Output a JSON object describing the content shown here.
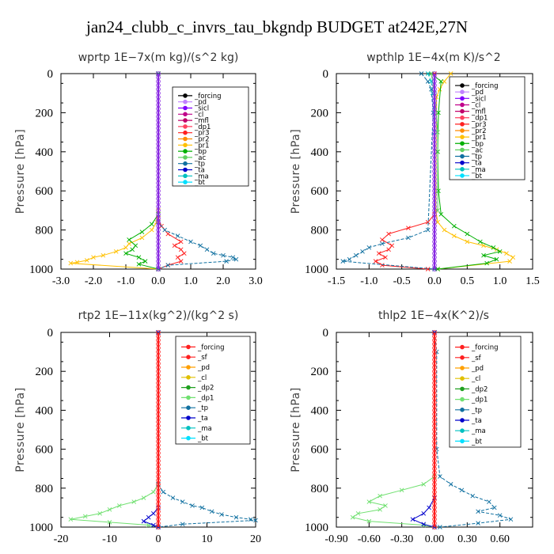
{
  "figure": {
    "title": "jan24_clubb_c_invrs_tau_bkgndp  BUDGET at242E,27N"
  },
  "chart_data": [
    {
      "type": "line",
      "title": "wprtp   1E−7x(m kg)/(s^2 kg)",
      "ylabel": "Pressure  [hPa]",
      "xlim": [
        -3.0,
        3.0
      ],
      "ylim": [
        1000,
        0
      ],
      "xticks": [
        "-3.0",
        "-2.0",
        "-1.0",
        "0.0",
        "1.0",
        "2.0",
        "3.0"
      ],
      "yticks": [
        "0",
        "200",
        "400",
        "600",
        "800",
        "1000"
      ],
      "legend": [
        "_forcing",
        "_pd",
        "_sicl",
        "_cl",
        "_mfl",
        "_dp1",
        "_pr3",
        "_pr2",
        "_pr1",
        "_bp",
        "_ac",
        "_tp",
        "_ta",
        "_ma",
        "_bt"
      ],
      "legend_colors": [
        "#000000",
        "#c080ff",
        "#8000ff",
        "#c0008a",
        "#c0006a",
        "#ff4060",
        "#ff2020",
        "#ff8c00",
        "#ffc000",
        "#00b000",
        "#60d060",
        "#1070a0",
        "#0000cc",
        "#00c0c0",
        "#00e0ff"
      ],
      "series": [
        {
          "name": "_pr1",
          "color": "#ffc000",
          "x": [
            0,
            0,
            -0.05,
            -0.2,
            -0.5,
            -0.9,
            -1.0,
            -1.3,
            -1.7,
            -2.0,
            -2.2,
            -2.5,
            -2.7,
            0.0
          ],
          "y": [
            0,
            700,
            760,
            800,
            840,
            870,
            890,
            910,
            930,
            940,
            955,
            965,
            970,
            1000
          ]
        },
        {
          "name": "_bp",
          "color": "#00b000",
          "x": [
            0,
            0,
            -0.2,
            -0.5,
            -0.9,
            -0.7,
            -0.8,
            -1.0,
            -0.6,
            -0.4,
            -0.6,
            0.0
          ],
          "y": [
            0,
            720,
            770,
            810,
            850,
            880,
            900,
            920,
            940,
            960,
            975,
            1000
          ]
        },
        {
          "name": "_dp1",
          "color": "#ff2020",
          "x": [
            0,
            0,
            0.1,
            0.3,
            0.7,
            0.5,
            0.7,
            0.8,
            0.6,
            0.7,
            0.3,
            0.0
          ],
          "y": [
            0,
            740,
            780,
            820,
            860,
            880,
            900,
            920,
            940,
            960,
            980,
            1000
          ]
        },
        {
          "name": "_tp",
          "color": "#1070a0",
          "x": [
            0,
            0,
            0.2,
            0.6,
            1.0,
            1.3,
            1.5,
            1.7,
            2.0,
            2.3,
            2.4,
            2.1,
            0.3,
            0.0
          ],
          "y": [
            0,
            760,
            800,
            830,
            860,
            880,
            900,
            920,
            930,
            940,
            950,
            960,
            980,
            1000
          ]
        },
        {
          "name": "_bt",
          "color": "#8a2be2",
          "x": [
            0,
            0
          ],
          "y": [
            0,
            1000
          ]
        }
      ]
    },
    {
      "type": "line",
      "title": "wpthlp   1E−4x(m K)/s^2",
      "ylabel": "Pressure  [hPa]",
      "xlim": [
        -1.5,
        1.5
      ],
      "ylim": [
        1000,
        0
      ],
      "xticks": [
        "-1.5",
        "-1.0",
        "-0.5",
        "0.0",
        "0.5",
        "1.0",
        "1.5"
      ],
      "yticks": [
        "0",
        "200",
        "400",
        "600",
        "800",
        "1000"
      ],
      "legend": [
        "_forcing",
        "_pd",
        "_sicl",
        "_cl",
        "_mfl",
        "_dp1",
        "_pr3",
        "_pr2",
        "_pr1",
        "_bp",
        "_ac",
        "_tp",
        "_ta",
        "_ma",
        "_bt"
      ],
      "legend_colors": [
        "#000000",
        "#c080ff",
        "#8000ff",
        "#c0008a",
        "#c0006a",
        "#ff4060",
        "#ff2020",
        "#ff8c00",
        "#ffc000",
        "#00b000",
        "#60d060",
        "#1070a0",
        "#0000cc",
        "#00c0c0",
        "#00e0ff"
      ],
      "series": [
        {
          "name": "_pr1",
          "color": "#ffc000",
          "x": [
            0.25,
            0.15,
            0.08,
            0.03,
            0.02,
            0.05,
            0.15,
            0.3,
            0.5,
            0.75,
            0.95,
            1.1,
            1.2,
            1.15,
            0.05
          ],
          "y": [
            0,
            40,
            80,
            120,
            700,
            760,
            800,
            830,
            860,
            880,
            900,
            920,
            940,
            960,
            1000
          ]
        },
        {
          "name": "_bp",
          "color": "#00b000",
          "x": [
            -0.05,
            0.1,
            0.06,
            0.05,
            0.06,
            0.1,
            0.3,
            0.5,
            0.7,
            0.9,
            1.0,
            0.75,
            0.95,
            0.8,
            0.05
          ],
          "y": [
            0,
            40,
            200,
            400,
            600,
            720,
            780,
            820,
            860,
            890,
            910,
            930,
            950,
            970,
            1000
          ]
        },
        {
          "name": "_dp1",
          "color": "#ff2020",
          "x": [
            0,
            0,
            -0.1,
            -0.4,
            -0.7,
            -0.8,
            -0.65,
            -0.7,
            -0.85,
            -0.75,
            -0.9,
            -0.8,
            -0.1
          ],
          "y": [
            0,
            720,
            760,
            790,
            820,
            850,
            880,
            900,
            920,
            940,
            960,
            980,
            1000
          ]
        },
        {
          "name": "_tp",
          "color": "#1070a0",
          "x": [
            -0.2,
            -0.1,
            -0.05,
            -0.02,
            -0.1,
            -0.4,
            -0.8,
            -1.0,
            -1.1,
            -1.2,
            -1.3,
            -1.4,
            0.0
          ],
          "y": [
            0,
            40,
            80,
            200,
            800,
            840,
            870,
            890,
            910,
            930,
            950,
            960,
            1000
          ]
        },
        {
          "name": "_ac",
          "color": "#60d060",
          "x": [
            -0.05,
            0.0,
            0.05,
            0.05
          ],
          "y": [
            0,
            100,
            300,
            700
          ]
        },
        {
          "name": "_ma",
          "color": "#00c0c0",
          "x": [
            -0.1,
            -0.05,
            -0.03,
            0.0
          ],
          "y": [
            0,
            40,
            100,
            300
          ]
        },
        {
          "name": "_bt",
          "color": "#8a2be2",
          "x": [
            0,
            0
          ],
          "y": [
            0,
            1000
          ]
        }
      ]
    },
    {
      "type": "line",
      "title": "rtp2   1E−11x(kg^2)/(kg^2 s)",
      "ylabel": "Pressure  [hPa]",
      "xlim": [
        -20,
        20
      ],
      "ylim": [
        1000,
        0
      ],
      "xticks": [
        "-20",
        "-10",
        "0",
        "10",
        "20"
      ],
      "yticks": [
        "0",
        "200",
        "400",
        "600",
        "800",
        "1000"
      ],
      "legend": [
        "_forcing",
        "_sf",
        "_pd",
        "_cl",
        "_dp2",
        "_dp1",
        "_tp",
        "_ta",
        "_ma",
        "_bt"
      ],
      "legend_colors": [
        "#ff2020",
        "#ff2020",
        "#ffa000",
        "#e0c000",
        "#20a020",
        "#70e070",
        "#1070a0",
        "#0000cc",
        "#00c0c0",
        "#00e0ff"
      ],
      "series": [
        {
          "name": "_dp1",
          "color": "#70e070",
          "x": [
            0,
            0,
            -1,
            -3,
            -5,
            -8,
            -10,
            -12,
            -15,
            -18,
            -10,
            -2,
            0
          ],
          "y": [
            0,
            780,
            820,
            850,
            870,
            890,
            910,
            930,
            945,
            960,
            975,
            990,
            1000
          ]
        },
        {
          "name": "_tp",
          "color": "#1070a0",
          "x": [
            0,
            0,
            1,
            3,
            5,
            7,
            9,
            11,
            13,
            16,
            19,
            20,
            5,
            0
          ],
          "y": [
            0,
            780,
            820,
            850,
            870,
            890,
            900,
            920,
            935,
            950,
            960,
            965,
            985,
            1000
          ]
        },
        {
          "name": "_ta",
          "color": "#0000cc",
          "x": [
            0,
            0,
            -1,
            -2,
            -3,
            -1,
            0
          ],
          "y": [
            0,
            900,
            930,
            950,
            970,
            990,
            1000
          ]
        },
        {
          "name": "_bt",
          "color": "#ff2020",
          "x": [
            0,
            0
          ],
          "y": [
            0,
            1000
          ]
        }
      ]
    },
    {
      "type": "line",
      "title": "thlp2   1E−4x(K^2)/s",
      "ylabel": "Pressure  [hPa]",
      "xlim": [
        -0.9,
        0.9
      ],
      "ylim": [
        1000,
        0
      ],
      "xticks": [
        "-0.90",
        "-0.60",
        "-0.30",
        "0.00",
        "0.30",
        "0.60"
      ],
      "yticks": [
        "0",
        "200",
        "400",
        "600",
        "800",
        "1000"
      ],
      "legend": [
        "_forcing",
        "_sf",
        "_pd",
        "_cl",
        "_dp2",
        "_dp1",
        "_tp",
        "_ta",
        "_ma",
        "_bt"
      ],
      "legend_colors": [
        "#ff2020",
        "#ff2020",
        "#ffa000",
        "#e0c000",
        "#20a020",
        "#70e070",
        "#1070a0",
        "#0000cc",
        "#00c0c0",
        "#00e0ff"
      ],
      "series": [
        {
          "name": "_dp1",
          "color": "#70e070",
          "x": [
            0,
            0,
            -0.1,
            -0.3,
            -0.5,
            -0.6,
            -0.45,
            -0.5,
            -0.7,
            -0.75,
            -0.6,
            -0.1,
            0
          ],
          "y": [
            0,
            740,
            780,
            810,
            840,
            870,
            890,
            910,
            930,
            950,
            970,
            990,
            1000
          ]
        },
        {
          "name": "_tp",
          "color": "#1070a0",
          "x": [
            0,
            0.02,
            0.02,
            0.05,
            0.15,
            0.25,
            0.35,
            0.5,
            0.55,
            0.4,
            0.6,
            0.7,
            0.4,
            0.05
          ],
          "y": [
            0,
            100,
            600,
            740,
            780,
            810,
            840,
            870,
            900,
            920,
            940,
            960,
            980,
            1000
          ]
        },
        {
          "name": "_ta",
          "color": "#0000cc",
          "x": [
            0,
            0,
            -0.05,
            -0.1,
            -0.2,
            -0.1,
            0
          ],
          "y": [
            0,
            850,
            900,
            930,
            960,
            985,
            1000
          ]
        },
        {
          "name": "_bt",
          "color": "#ff2020",
          "x": [
            0,
            0
          ],
          "y": [
            0,
            1000
          ]
        }
      ]
    }
  ]
}
